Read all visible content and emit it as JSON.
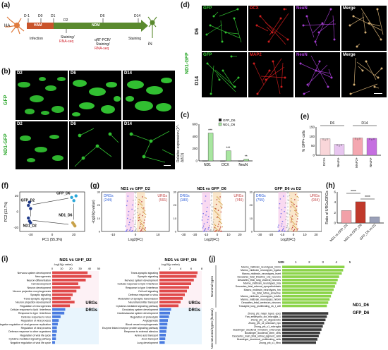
{
  "panels": {
    "a": {
      "letter": "(a)",
      "start_label": "HA",
      "end_label": "iN",
      "days": [
        "D-1",
        "D0",
        "D1",
        "D2",
        "D6",
        "D14"
      ],
      "phase1": "HAM",
      "phase2": "NDM",
      "events_black": [
        "Infection",
        "Staining/",
        "qRT-PCR/",
        "Staining/",
        "Staining"
      ],
      "events_red": [
        "RNA-seq",
        "RNA-seq"
      ]
    },
    "b": {
      "letter": "(b)",
      "row_labels": [
        "GFP",
        "ND1-GFP"
      ],
      "col_labels": [
        "D2",
        "D6",
        "D14"
      ]
    },
    "c": {
      "letter": "(c)",
      "ylabel": "Relative expression",
      "ysub": "(2^-ΔΔCt)",
      "legend": [
        "GFP_D6",
        "ND1_D6"
      ],
      "colors": {
        "gfp": "#1a1a1a",
        "nd1": "#a8e6a0"
      },
      "sig": [
        "***",
        "***",
        "**"
      ],
      "yticks": [
        "0",
        "200",
        "400",
        "600"
      ],
      "chart_data": {
        "type": "bar",
        "categories": [
          "ND1",
          "DCX",
          "NeuN"
        ],
        "series": [
          {
            "name": "GFP_D6",
            "values": [
              2,
              1,
              1
            ]
          },
          {
            "name": "ND1_D6",
            "values": [
              455,
              165,
              28
            ]
          }
        ],
        "ylim": [
          0,
          600
        ]
      }
    },
    "d": {
      "letter": "(d)",
      "side_label": "ND1-GFP",
      "row_labels": [
        "D6",
        "D14"
      ],
      "row1_channels": [
        "GFP",
        "DCX",
        "NeuN",
        "Merge"
      ],
      "row2_channels": [
        "GFP",
        "MAP2",
        "NeuN",
        "Merge"
      ]
    },
    "e": {
      "letter": "(e)",
      "ylabel": "% GFP+ cells",
      "groups": [
        "D6",
        "D14"
      ],
      "yticks": [
        "0",
        "50",
        "100",
        "150"
      ],
      "chart_data": {
        "type": "bar",
        "categories": [
          "DCX+",
          "NeuN+",
          "MAP2+",
          "NeuN+"
        ],
        "values": [
          88,
          58,
          92,
          90
        ],
        "colors": [
          "#f9d6d9",
          "#e8c6f0",
          "#f4a7b0",
          "#c56fe0"
        ],
        "ylim": [
          0,
          150
        ]
      }
    },
    "f": {
      "letter": "(f)",
      "xlabel": "PC1 (55.3%)",
      "ylabel": "PC2 (13.7%)",
      "labels": [
        "GFP_D6",
        "GFP_D2",
        "ND1_D2",
        "ND1_D6"
      ],
      "xticks": [
        "-20",
        "0",
        "20"
      ],
      "yticks": [
        "-20",
        "0",
        "20"
      ],
      "chart_data": {
        "type": "scatter",
        "series": [
          {
            "name": "GFP_D2",
            "x": [
              -21,
              -22,
              -20
            ],
            "y": [
              12,
              8,
              4
            ],
            "color": "#1f3a8a"
          },
          {
            "name": "ND1_D2",
            "x": [
              -22,
              -21,
              -20
            ],
            "y": [
              -8,
              -12,
              -14
            ],
            "color": "#1f3a8a"
          },
          {
            "name": "GFP_D6",
            "x": [
              18,
              20,
              22
            ],
            "y": [
              18,
              14,
              20
            ],
            "color": "#2aa7d8"
          },
          {
            "name": "ND1_D6",
            "x": [
              19,
              21,
              20
            ],
            "y": [
              -14,
              -18,
              -16
            ],
            "color": "#c8a24a"
          }
        ],
        "xlim": [
          -30,
          30
        ],
        "ylim": [
          -25,
          25
        ]
      }
    },
    "g": {
      "letter": "(g)",
      "ylabel": "-log10(p value)",
      "xlabel": "Log2(FC)",
      "plots": [
        {
          "title": "ND1 vs GFP_D2",
          "drg_label": "DRGs",
          "drg_count": "(244)",
          "urg_label": "URGs",
          "urg_count": "(591)",
          "xticks": [
            "-10",
            "0",
            "10"
          ]
        },
        {
          "title": "ND1 vs GFP_D6",
          "drg_label": "DRGs",
          "drg_count": "(180)",
          "urg_label": "URGs",
          "urg_count": "(740)",
          "xticks": [
            "-30",
            "-20",
            "-10",
            "0",
            "10",
            "20"
          ]
        },
        {
          "title": "GFP_D6 vs D2",
          "drg_label": "DRGs",
          "drg_count": "(755)",
          "urg_label": "URGs",
          "urg_count": "(934)",
          "xticks": [
            "-30",
            "-20",
            "-10",
            "0",
            "10",
            "20"
          ]
        }
      ],
      "yticks": [
        "0",
        "10",
        "20",
        "30"
      ]
    },
    "h": {
      "letter": "(h)",
      "ylabel": "Ratio of URGs/DRGs",
      "sig": [
        "****",
        "****"
      ],
      "yticks": [
        "0",
        "2",
        "4",
        "6"
      ],
      "chart_data": {
        "type": "bar",
        "categories": [
          "ND1 vs GFP_D2",
          "ND1 vs GFP_D6",
          "GFP_D6 vs D2"
        ],
        "values": [
          2.4,
          4.1,
          1.2
        ],
        "colors": [
          "#f2a0a8",
          "#c0392b",
          "#9aa0b8"
        ],
        "ylim": [
          0,
          6
        ]
      }
    },
    "i": {
      "letter": "(i)",
      "left_title": "ND1 vs GFP_D2",
      "right_title": "ND1 vs GFP_D6",
      "axis_label": "-log10(p value)",
      "urg": "URGs",
      "drg": "DRGs",
      "left_ticks": [
        "0",
        "10",
        "20",
        "30",
        "40",
        "50"
      ],
      "right_ticks": [
        "0",
        "2",
        "4",
        "6",
        "8"
      ],
      "left_terms": [
        "Nervous system development",
        "Neurogenesis",
        "Neuron differentiation",
        "Cell development",
        "Neuron development",
        "Neuron projection morphogenesis",
        "Synaptic signaling",
        "Trans-synaptic signaling",
        "Neuron projection development",
        "Regulation of neurogenesis",
        "Cellular response to lipid / interferon",
        "Response to type I interferon",
        "Defense response to virus",
        "Regulation of viral process",
        "Negative regulation of viral genome replication",
        "Regulation of viral process",
        "Defense response to other organisms",
        "Regulation of viral life cycle",
        "Cytokine-mediated signaling pathway",
        "Negative regulation of viral life cycle"
      ],
      "left_values": [
        38,
        42,
        36,
        28,
        30,
        26,
        22,
        20,
        24,
        19,
        14,
        13,
        9,
        7,
        6,
        5,
        5,
        4,
        4,
        3
      ],
      "right_terms": [
        "Trans-synaptic signaling",
        "Synaptic signaling",
        "Nervous system development",
        "Cellular response to lipid / interferon",
        "Response to type I interferon",
        "Cell-cell signaling",
        "Defense response to virus",
        "Modulation of synaptic transmission",
        "Neurotransmitter transport",
        "Cytokine-mediated signaling pathway",
        "Circulatory system development",
        "Cardiovascular system development",
        "Regulation of proteolysis",
        "Angiogenesis",
        "Blood vessel morphogenesis",
        "Enzyme linked receptor protein signaling pathway",
        "Response to external stimulus",
        "Amino acid transport",
        "Axon transport",
        "Lung development"
      ],
      "right_values": [
        7.2,
        7.0,
        6.5,
        6.0,
        5.6,
        5.2,
        4.8,
        4.4,
        4.0,
        3.6,
        2.2,
        2.0,
        1.8,
        1.6,
        1.5,
        1.4,
        1.3,
        1.2,
        1.1,
        1.0
      ]
    },
    "j": {
      "letter": "(j)",
      "axis_label": "NES",
      "ticks": [
        "0",
        "1",
        "2",
        "3",
        "4",
        "5"
      ],
      "group1": "Neuronal types",
      "group2": "Non-neuronal types (human)",
      "nd1_label": "ND1_D6",
      "gfp_label": "GFP_D6",
      "neuronal_terms": [
        "Manno_midbrain_neurotypes_hdmn",
        "Manno_midbrain_neurotypes_hgaba",
        "Manno_midbrain_neurotypes_hsert",
        "Descartes_fetal_intestine_ens_neurons",
        "Descartes_fetal_lung_visceral_neurons",
        "Manno_midbrain_neurotypes_hda",
        "Descartes_fetal_adrenal_sympathoblasts",
        "Manno_midbrain_neurotypes_hrn",
        "Hu_fetal_retina_amacrine",
        "Manno_midbrain_neurotypes_hoMtn",
        "Manno_midbrain_neurotypes_hnbml",
        "Descartes_fetal_cerebrum_neurons",
        "Travaglini_lung_proliferating_nk_t_cell"
      ],
      "neuronal_values": [
        4.6,
        4.5,
        4.4,
        4.2,
        4.1,
        4.0,
        3.9,
        3.8,
        3.7,
        3.6,
        3.5,
        3.4,
        3.3
      ],
      "nonneuronal_terms": [
        "Zhong_pfc_major_types_opcs",
        "Fan_embryonic_ctx_microglia_1",
        "Zhong_pfc_c2_oligodendro",
        "Zhong_pfc_c2_unknown_npc",
        "Zhong_pfc_c1_microglia",
        "Busslinger_duodenal_immature_enterocyte",
        "Busslinger_duodenal_stem_cells",
        "Descartes_main_fetal_retinal_pigment_cells",
        "Busslinger_duodenal_proliferating_cells",
        "Zhong_pfc_c1_fibro"
      ],
      "nonneuronal_values": [
        3.4,
        3.3,
        3.2,
        3.1,
        3.0,
        2.9,
        2.8,
        2.7,
        2.6,
        2.5
      ]
    }
  }
}
